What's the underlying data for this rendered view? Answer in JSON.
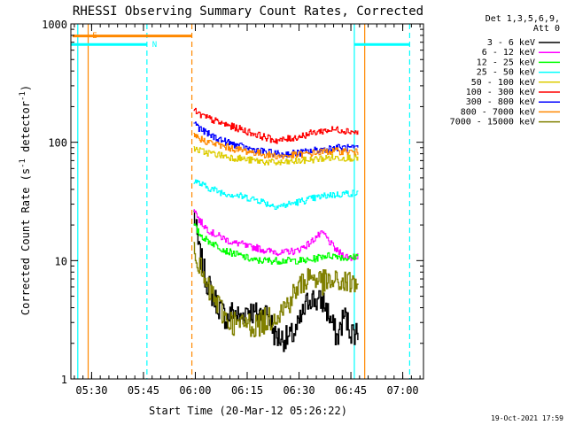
{
  "chart_data": {
    "type": "line",
    "title": "RHESSI Observing Summary Count Rates, Corrected",
    "xlabel": "Start Time (20-Mar-12 05:26:22)",
    "ylabel": "Corrected Count Rate (s^-1 detector^-1)",
    "ylabel_parts": {
      "main": "Corrected Count Rate (s",
      "sup1": "-1",
      "mid": " detector",
      "sup2": "-1",
      "end": ")"
    },
    "yscale": "log",
    "ylim": [
      1,
      1000
    ],
    "xlim_minutes_after_0526": [
      -2,
      100
    ],
    "x_tick_labels": [
      {
        "label": "05:30",
        "minute": 4
      },
      {
        "label": "05:45",
        "minute": 19
      },
      {
        "label": "06:00",
        "minute": 34
      },
      {
        "label": "06:15",
        "minute": 49
      },
      {
        "label": "06:30",
        "minute": 64
      },
      {
        "label": "06:45",
        "minute": 79
      },
      {
        "label": "07:00",
        "minute": 94
      }
    ],
    "y_tick_labels": [
      {
        "label": "1",
        "value": 1
      },
      {
        "label": "10",
        "value": 10
      },
      {
        "label": "100",
        "value": 100
      },
      {
        "label": "1000",
        "value": 1000
      }
    ],
    "legend": {
      "header": [
        "Det 1,3,5,6,9,",
        "Att 0"
      ],
      "placement": "right"
    },
    "series": [
      {
        "name": "3 - 6 keV",
        "color": "#000000",
        "x": [
          33.5,
          35,
          37,
          39,
          41,
          43,
          45,
          47,
          49,
          51,
          53,
          55,
          57,
          59,
          61,
          63,
          65,
          67,
          69,
          71,
          73,
          75,
          77,
          79,
          81
        ],
        "y": [
          25,
          12,
          7,
          5,
          4,
          3.2,
          3.8,
          3.2,
          4,
          3.5,
          3.6,
          3.6,
          2.3,
          2.2,
          2.2,
          2.5,
          3.5,
          5,
          4.5,
          4.5,
          3.2,
          2.2,
          3.5,
          2.5,
          2.5
        ]
      },
      {
        "name": "6 - 12 keV",
        "color": "#ff00ff",
        "x": [
          33.5,
          35,
          37,
          39,
          41,
          43,
          45,
          47,
          49,
          51,
          53,
          55,
          57,
          59,
          61,
          63,
          65,
          67,
          69,
          71,
          73,
          75,
          77,
          79,
          81
        ],
        "y": [
          28,
          22,
          19,
          17,
          16,
          15,
          14,
          14,
          13,
          13,
          12.5,
          12,
          12,
          11.5,
          12,
          12,
          13,
          14,
          16,
          17,
          14,
          12,
          11,
          10.5,
          11
        ]
      },
      {
        "name": "12 - 25 keV",
        "color": "#00ff00",
        "x": [
          33.5,
          35,
          37,
          39,
          41,
          43,
          45,
          47,
          49,
          51,
          53,
          55,
          57,
          59,
          61,
          63,
          65,
          67,
          69,
          71,
          73,
          75,
          77,
          79,
          81
        ],
        "y": [
          20,
          17,
          15,
          14,
          13,
          12,
          11.5,
          11,
          10.5,
          10,
          10,
          10,
          10,
          10,
          10,
          10,
          10,
          10,
          10.5,
          11,
          11,
          11,
          10.5,
          10.5,
          11
        ]
      },
      {
        "name": "25 - 50 keV",
        "color": "#00ffff",
        "x": [
          33.5,
          35,
          37,
          39,
          41,
          43,
          45,
          47,
          49,
          51,
          53,
          55,
          57,
          59,
          61,
          63,
          65,
          67,
          69,
          71,
          73,
          75,
          77,
          79,
          81
        ],
        "y": [
          48,
          45,
          42,
          40,
          38,
          37,
          36,
          35,
          34,
          33,
          32,
          30,
          29,
          29,
          30,
          31,
          32,
          33,
          34,
          35,
          36,
          36,
          37,
          37,
          37
        ]
      },
      {
        "name": "50 - 100 keV",
        "color": "#ddcc00",
        "x": [
          33.5,
          35,
          37,
          39,
          41,
          43,
          45,
          47,
          49,
          51,
          53,
          55,
          57,
          59,
          61,
          63,
          65,
          67,
          69,
          71,
          73,
          75,
          77,
          79,
          81
        ],
        "y": [
          90,
          85,
          82,
          80,
          78,
          76,
          74,
          73,
          71,
          70,
          69,
          68,
          67,
          67,
          68,
          69,
          70,
          71,
          72,
          73,
          74,
          74,
          74,
          74,
          74
        ]
      },
      {
        "name": "100 - 300 keV",
        "color": "#ff0000",
        "x": [
          33.5,
          35,
          37,
          39,
          41,
          43,
          45,
          47,
          49,
          51,
          53,
          55,
          57,
          59,
          61,
          63,
          65,
          67,
          69,
          71,
          73,
          75,
          77,
          79,
          81
        ],
        "y": [
          185,
          172,
          162,
          154,
          146,
          140,
          134,
          129,
          123,
          118,
          113,
          108,
          104,
          104,
          107,
          110,
          114,
          118,
          122,
          125,
          127,
          128,
          126,
          124,
          120
        ]
      },
      {
        "name": "300 - 800 keV",
        "color": "#0000ff",
        "x": [
          33.5,
          35,
          37,
          39,
          41,
          43,
          45,
          47,
          49,
          51,
          53,
          55,
          57,
          59,
          61,
          63,
          65,
          67,
          69,
          71,
          73,
          75,
          77,
          79,
          81
        ],
        "y": [
          150,
          132,
          120,
          112,
          106,
          100,
          96,
          92,
          89,
          86,
          84,
          82,
          80,
          79,
          80,
          81,
          82,
          84,
          86,
          87,
          89,
          90,
          90,
          89,
          88
        ]
      },
      {
        "name": "800 - 7000 keV",
        "color": "#ff8800",
        "x": [
          33.5,
          35,
          37,
          39,
          41,
          43,
          45,
          47,
          49,
          51,
          53,
          55,
          57,
          59,
          61,
          63,
          65,
          67,
          69,
          71,
          73,
          75,
          77,
          79,
          81
        ],
        "y": [
          115,
          108,
          102,
          98,
          94,
          91,
          88,
          86,
          84,
          82,
          80,
          78,
          77,
          76,
          77,
          78,
          79,
          80,
          82,
          83,
          84,
          84,
          84,
          83,
          82
        ]
      },
      {
        "name": "7000 - 15000 keV",
        "color": "#808000",
        "x": [
          33.5,
          35,
          37,
          39,
          41,
          43,
          45,
          47,
          49,
          51,
          53,
          55,
          57,
          59,
          61,
          63,
          65,
          67,
          69,
          71,
          73,
          75,
          77,
          79,
          81
        ],
        "y": [
          15,
          9,
          6,
          5,
          4,
          3.2,
          3,
          2.8,
          3,
          2.8,
          3,
          3.2,
          3.5,
          3.8,
          4.5,
          5.5,
          6.5,
          7.5,
          7,
          6.5,
          6.5,
          6.5,
          6.5,
          6.5,
          6.5
        ]
      }
    ],
    "annotations": [
      {
        "text": "E",
        "color": "#ff8800",
        "minute": 4.2,
        "value": 800
      },
      {
        "text": "N",
        "color": "#00ffff",
        "minute": 21.5,
        "value": 670
      }
    ],
    "flag_lines": [
      {
        "color": "#00ffff",
        "x_minutes": [
          -2,
          20
        ],
        "value": 670
      },
      {
        "color": "#00ffff",
        "x_minutes": [
          80,
          96
        ],
        "value": 670
      },
      {
        "color": "#ff8800",
        "x_minutes": [
          -1.5,
          33
        ],
        "value": 790
      }
    ],
    "vertical_lines": [
      {
        "color": "#00ffff",
        "style": "solid",
        "minute": 0
      },
      {
        "color": "#ff8800",
        "style": "solid",
        "minute": 3
      },
      {
        "color": "#00ffff",
        "style": "dashed",
        "minute": 20
      },
      {
        "color": "#ff8800",
        "style": "dashed",
        "minute": 33
      },
      {
        "color": "#00ffff",
        "style": "solid",
        "minute": 80
      },
      {
        "color": "#ff8800",
        "style": "solid",
        "minute": 83
      },
      {
        "color": "#00ffff",
        "style": "dashed",
        "minute": 96
      }
    ],
    "footer": "19-Oct-2021 17:59"
  }
}
